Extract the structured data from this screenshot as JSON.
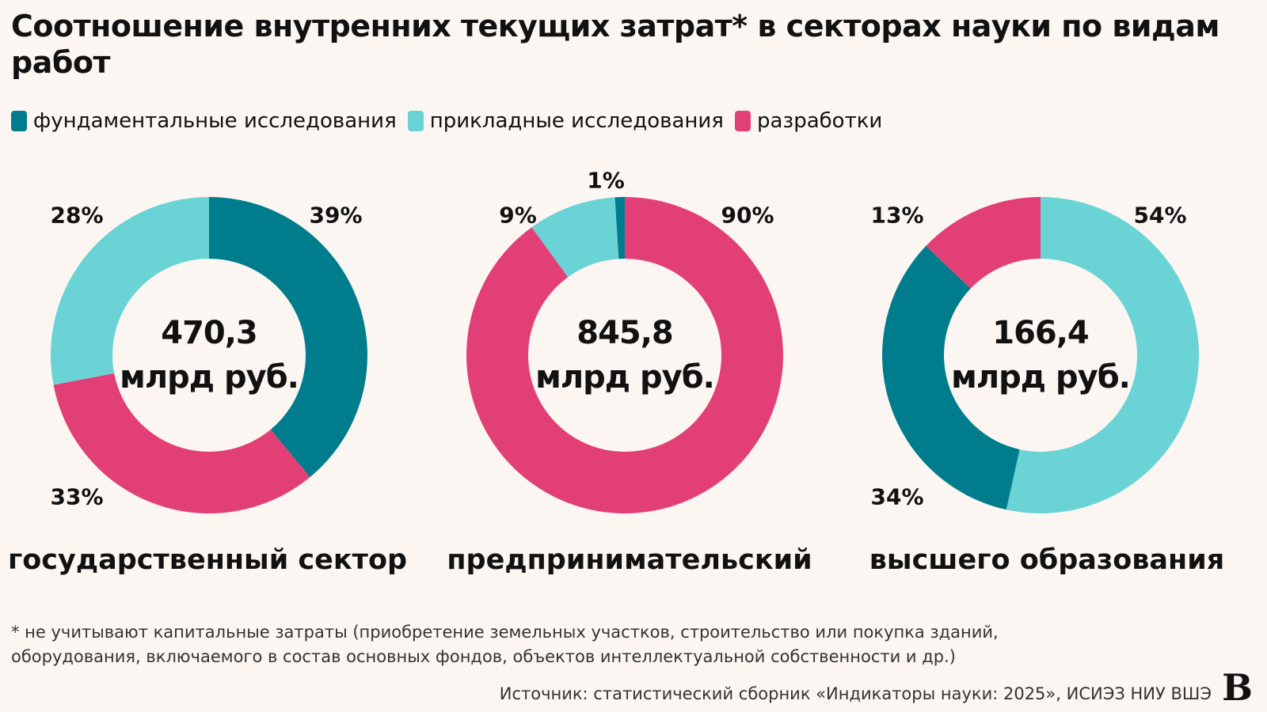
{
  "title": "Соотношение внутренних текущих затрат* в секторах науки по видам работ",
  "colors": {
    "fundamental": "#007d8c",
    "applied": "#6ad3d6",
    "development": "#e33f77",
    "background": "#fbf6f2"
  },
  "legend": [
    {
      "label": "фундаментальные исследования",
      "color": "#007d8c"
    },
    {
      "label": "прикладные исследования",
      "color": "#6ad3d6"
    },
    {
      "label": "разработки",
      "color": "#e33f77"
    }
  ],
  "chart_data": [
    {
      "type": "pie",
      "title": "государственный сектор",
      "total": "470,3",
      "unit": "млрд руб.",
      "slices": [
        {
          "name": "фундаментальные исследования",
          "value": 39,
          "label": "39%"
        },
        {
          "name": "разработки",
          "value": 33,
          "label": "33%"
        },
        {
          "name": "прикладные исследования",
          "value": 28,
          "label": "28%"
        }
      ]
    },
    {
      "type": "pie",
      "title": "предпринимательский",
      "total": "845,8",
      "unit": "млрд руб.",
      "slices": [
        {
          "name": "разработки",
          "value": 90,
          "label": "90%"
        },
        {
          "name": "прикладные исследования",
          "value": 9,
          "label": "9%"
        },
        {
          "name": "фундаментальные исследования",
          "value": 1,
          "label": "1%"
        }
      ]
    },
    {
      "type": "pie",
      "title": "высшего образования",
      "total": "166,4",
      "unit": "млрд руб.",
      "slices": [
        {
          "name": "прикладные исследования",
          "value": 54,
          "label": "54%"
        },
        {
          "name": "фундаментальные исследования",
          "value": 34,
          "label": "34%"
        },
        {
          "name": "разработки",
          "value": 13,
          "label": "13%"
        }
      ]
    }
  ],
  "footnote_line1": "* не учитывают капитальные затраты (приобретение земельных участков, строительство или покупка зданий,",
  "footnote_line2": "оборудования, включаемого в состав основных фондов, объектов интеллектуальной собственности и др.)",
  "source": "Источник: статистический сборник «Индикаторы науки: 2025», ИСИЭЗ НИУ ВШЭ",
  "logo": "В"
}
